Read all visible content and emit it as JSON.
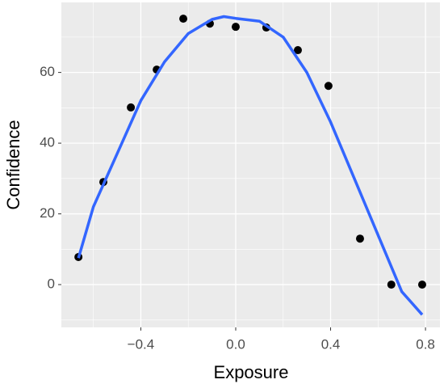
{
  "chart_data": {
    "type": "scatter",
    "x_label": "Exposure",
    "y_label": "Confidence",
    "x": [
      -0.663,
      -0.558,
      -0.442,
      -0.333,
      -0.221,
      -0.109,
      0.0,
      0.129,
      0.262,
      0.391,
      0.524,
      0.656,
      0.786
    ],
    "values": [
      7.8,
      29.0,
      50.1,
      60.8,
      75.2,
      73.8,
      72.9,
      72.7,
      66.3,
      56.2,
      13.0,
      0,
      0
    ],
    "color": "#000000",
    "smooth": {
      "color": "#3366ff",
      "x": [
        -0.663,
        -0.6,
        -0.5,
        -0.4,
        -0.3,
        -0.2,
        -0.1,
        -0.05,
        0.0,
        0.1,
        0.2,
        0.3,
        0.4,
        0.5,
        0.6,
        0.7,
        0.786
      ],
      "values": [
        7.5,
        22,
        37,
        52,
        63,
        71,
        75,
        75.8,
        75.3,
        74.5,
        70,
        60,
        46,
        30,
        14,
        -2,
        -8.5
      ]
    },
    "xlim": [
      -0.735,
      0.861
    ],
    "ylim": [
      -12.1,
      79.8
    ],
    "xticks": [
      {
        "value": -0.4,
        "label": "−0.4"
      },
      {
        "value": 0,
        "label": "0.0"
      },
      0.4,
      0.8
    ],
    "yticks": [
      0,
      20,
      40,
      60
    ],
    "grid": true
  }
}
